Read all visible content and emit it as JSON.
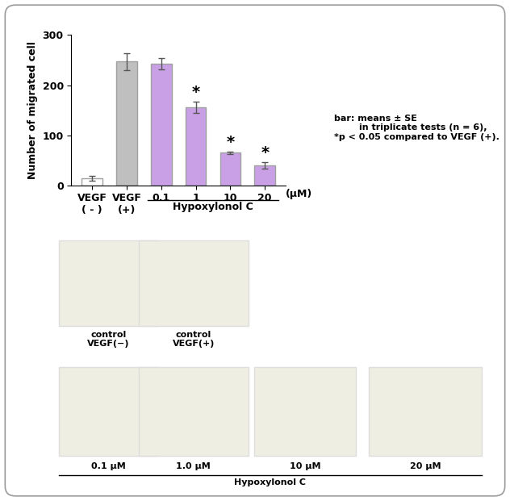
{
  "chart_data": {
    "type": "bar",
    "categories": [
      "VEGF\n( - )",
      "VEGF\n(+)",
      "0.1",
      "1",
      "10",
      "20"
    ],
    "values": [
      14,
      247,
      243,
      156,
      65,
      40
    ],
    "errors": [
      5,
      17,
      11,
      11,
      2,
      6
    ],
    "significance": [
      null,
      null,
      null,
      "*",
      "*",
      "*"
    ],
    "colors": [
      "#ffffff",
      "#bfbfbf",
      "#c9a0e6",
      "#c9a0e6",
      "#c9a0e6",
      "#c9a0e6"
    ],
    "y_label": "Number of migrated cell",
    "group_label": "Hypoxylonol C",
    "x_unit": "(μM)",
    "note": "bar: means ± SE\n        in triplicate tests (n = 6),\n*p < 0.05 compared to VEGF (+).",
    "ylim": [
      0,
      300
    ],
    "yticks": [
      0,
      100,
      200,
      300
    ],
    "grid": false
  },
  "micrographs": {
    "top": [
      "control\nVEGF(−)",
      "control\nVEGF(+)"
    ],
    "bottom": [
      "0.1 μM",
      "1.0 μM",
      "10 μM",
      "20 μM"
    ],
    "bottom_group": "Hypoxylonol C"
  }
}
